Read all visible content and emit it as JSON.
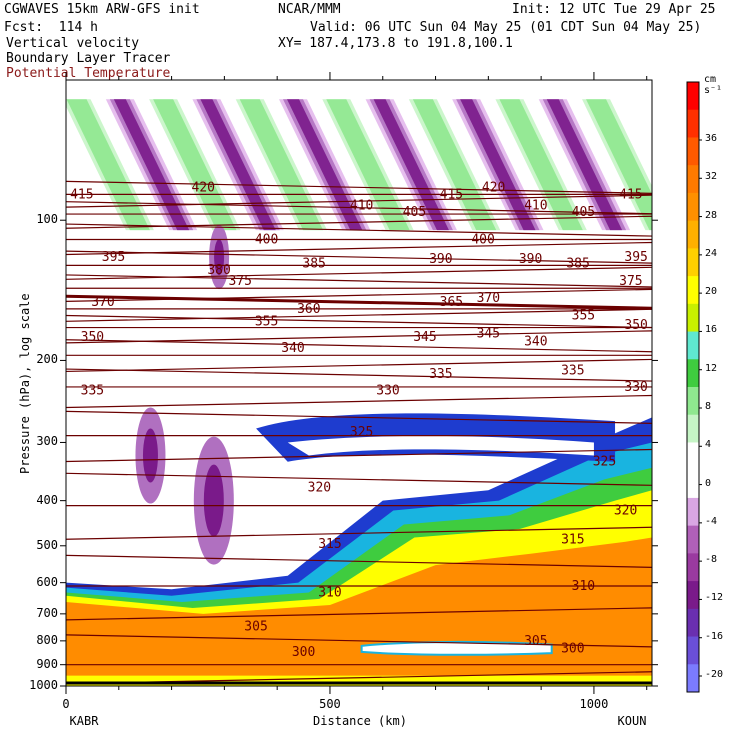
{
  "header": {
    "model": "CGWAVES 15km ARW-GFS init",
    "org": "NCAR/MMM",
    "init": "Init: 12 UTC Tue 29 Apr 25",
    "fcst": "Fcst:  114 h",
    "valid": "Valid: 06 UTC Sun 04 May 25 (01 CDT Sun 04 May 25)",
    "field1": "Vertical velocity",
    "xy": "XY= 187.4,173.8 to 191.8,100.1",
    "field2": "Boundary Layer Tracer",
    "field3": "Potential Temperature"
  },
  "axes": {
    "ylabel": "Pressure (hPa), log scale",
    "xlabel": "Distance (km)",
    "left_station": "KABR",
    "right_station": "KOUN",
    "colorbar_unit": "cm s⁻¹"
  },
  "colors": {
    "theta_line": "#6b0000",
    "tracer_orange": "#ff8c00",
    "tracer_blue": "#1e3ccf"
  },
  "chart_data": {
    "type": "heatmap",
    "xlim": [
      0,
      1110
    ],
    "ylim_hPa": [
      1000,
      50
    ],
    "yscale": "log",
    "x_ticks": [
      0,
      500,
      1000
    ],
    "y_ticks": [
      100,
      200,
      300,
      400,
      500,
      600,
      700,
      800,
      900,
      1000
    ],
    "colorbar_levels": [
      -20,
      -16,
      -12,
      -8,
      -4,
      0,
      4,
      8,
      12,
      16,
      20,
      24,
      28,
      32,
      36
    ],
    "colorbar_colors": [
      "#7b7bff",
      "#6a4fd8",
      "#6a2fb0",
      "#7a1a8a",
      "#9a3aa0",
      "#b060b8",
      "#d9a6e3",
      "#ffffff",
      "#ffffff",
      "#c6f5c6",
      "#8fe88f",
      "#3fcc3f",
      "#5fe8d0",
      "#c8f000",
      "#ffff00",
      "#ffd000",
      "#ffb000",
      "#ff9000",
      "#ff7a00",
      "#ff5a00",
      "#ff3000",
      "#ff0000"
    ],
    "theta_labels": [
      {
        "v": "415",
        "x": 30,
        "p": 88
      },
      {
        "v": "420",
        "x": 260,
        "p": 85
      },
      {
        "v": "410",
        "x": 560,
        "p": 93
      },
      {
        "v": "405",
        "x": 660,
        "p": 96
      },
      {
        "v": "415",
        "x": 730,
        "p": 88
      },
      {
        "v": "420",
        "x": 810,
        "p": 85
      },
      {
        "v": "410",
        "x": 890,
        "p": 93
      },
      {
        "v": "405",
        "x": 980,
        "p": 96
      },
      {
        "v": "415",
        "x": 1070,
        "p": 88
      },
      {
        "v": "400",
        "x": 380,
        "p": 110
      },
      {
        "v": "395",
        "x": 90,
        "p": 120
      },
      {
        "v": "400",
        "x": 790,
        "p": 110
      },
      {
        "v": "395",
        "x": 1080,
        "p": 120
      },
      {
        "v": "380",
        "x": 290,
        "p": 128
      },
      {
        "v": "385",
        "x": 470,
        "p": 124
      },
      {
        "v": "390",
        "x": 710,
        "p": 121
      },
      {
        "v": "390",
        "x": 880,
        "p": 121
      },
      {
        "v": "385",
        "x": 970,
        "p": 124
      },
      {
        "v": "375",
        "x": 330,
        "p": 135
      },
      {
        "v": "375",
        "x": 1070,
        "p": 135
      },
      {
        "v": "370",
        "x": 70,
        "p": 150
      },
      {
        "v": "365",
        "x": 730,
        "p": 150
      },
      {
        "v": "370",
        "x": 800,
        "p": 147
      },
      {
        "v": "360",
        "x": 460,
        "p": 155
      },
      {
        "v": "355",
        "x": 380,
        "p": 165
      },
      {
        "v": "355",
        "x": 980,
        "p": 160
      },
      {
        "v": "350",
        "x": 50,
        "p": 178
      },
      {
        "v": "350",
        "x": 1080,
        "p": 168
      },
      {
        "v": "345",
        "x": 680,
        "p": 178
      },
      {
        "v": "345",
        "x": 800,
        "p": 175
      },
      {
        "v": "340",
        "x": 430,
        "p": 188
      },
      {
        "v": "340",
        "x": 890,
        "p": 182
      },
      {
        "v": "335",
        "x": 50,
        "p": 232
      },
      {
        "v": "335",
        "x": 710,
        "p": 214
      },
      {
        "v": "335",
        "x": 960,
        "p": 210
      },
      {
        "v": "330",
        "x": 610,
        "p": 232
      },
      {
        "v": "330",
        "x": 1080,
        "p": 228
      },
      {
        "v": "325",
        "x": 560,
        "p": 285
      },
      {
        "v": "325",
        "x": 1020,
        "p": 330
      },
      {
        "v": "320",
        "x": 480,
        "p": 375
      },
      {
        "v": "320",
        "x": 1060,
        "p": 420
      },
      {
        "v": "315",
        "x": 500,
        "p": 495
      },
      {
        "v": "315",
        "x": 960,
        "p": 485
      },
      {
        "v": "310",
        "x": 500,
        "p": 630
      },
      {
        "v": "310",
        "x": 980,
        "p": 610
      },
      {
        "v": "305",
        "x": 360,
        "p": 745
      },
      {
        "v": "305",
        "x": 890,
        "p": 800
      },
      {
        "v": "300",
        "x": 450,
        "p": 845
      },
      {
        "v": "300",
        "x": 960,
        "p": 830
      }
    ]
  }
}
